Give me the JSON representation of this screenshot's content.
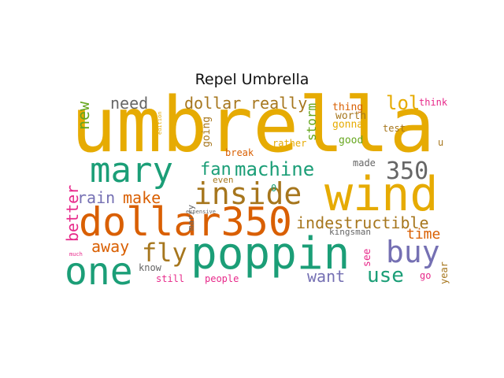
{
  "title": "Repel Umbrella",
  "words": {
    "umbrella": {
      "text": "umbrella",
      "color": "#e6ab02"
    },
    "wind": {
      "text": "wind",
      "color": "#e6ab02"
    },
    "poppin": {
      "text": "poppin",
      "color": "#1b9e77"
    },
    "dollar350": {
      "text": "dollar350",
      "color": "#d95f02"
    },
    "mary": {
      "text": "mary",
      "color": "#1b9e77"
    },
    "one": {
      "text": "one",
      "color": "#1b9e77"
    },
    "inside": {
      "text": "inside",
      "color": "#a6761d"
    },
    "buy": {
      "text": "buy",
      "color": "#7570b3"
    },
    "machine": {
      "text": "machine",
      "color": "#1b9e77"
    },
    "n350": {
      "text": "350",
      "color": "#666666"
    },
    "fly": {
      "text": "fly",
      "color": "#a6761d"
    },
    "use": {
      "text": "use",
      "color": "#1b9e77"
    },
    "indestructible": {
      "text": "indestructible",
      "color": "#a6761d"
    },
    "dollar": {
      "text": "dollar",
      "color": "#a6761d"
    },
    "really": {
      "text": "really",
      "color": "#a6761d"
    },
    "need": {
      "text": "need",
      "color": "#666666"
    },
    "lol": {
      "text": "lol",
      "color": "#e6ab02"
    },
    "fan": {
      "text": "fan",
      "color": "#1b9e77"
    },
    "rain": {
      "text": "rain",
      "color": "#7570b3"
    },
    "make": {
      "text": "make",
      "color": "#d95f02"
    },
    "away": {
      "text": "away",
      "color": "#d95f02"
    },
    "want": {
      "text": "want",
      "color": "#7570b3"
    },
    "time": {
      "text": "time",
      "color": "#d95f02"
    },
    "kingsman": {
      "text": "kingsman",
      "color": "#666666"
    },
    "know": {
      "text": "know",
      "color": "#666666"
    },
    "still": {
      "text": "still",
      "color": "#e7298a"
    },
    "people": {
      "text": "people",
      "color": "#e7298a"
    },
    "thing": {
      "text": "thing",
      "color": "#d95f02"
    },
    "gonna": {
      "text": "gonna",
      "color": "#e6ab02"
    },
    "worth": {
      "text": "worth",
      "color": "#a6761d"
    },
    "test": {
      "text": "test",
      "color": "#a6761d"
    },
    "good": {
      "text": "good",
      "color": "#66a61e"
    },
    "rather": {
      "text": "rather",
      "color": "#e6ab02"
    },
    "break": {
      "text": "break",
      "color": "#d95f02"
    },
    "made": {
      "text": "made",
      "color": "#666666"
    },
    "even": {
      "text": "even",
      "color": "#a6761d"
    },
    "think": {
      "text": "think",
      "color": "#e7298a"
    },
    "u": {
      "text": "u",
      "color": "#a6761d"
    },
    "zero": {
      "text": "0",
      "color": "#1b9e77"
    },
    "expensive": {
      "text": "expensive",
      "color": "#666666"
    },
    "much": {
      "text": "much",
      "color": "#e7298a"
    },
    "go": {
      "text": "go",
      "color": "#e7298a"
    },
    "new": {
      "text": "new",
      "color": "#66a61e"
    },
    "better": {
      "text": "better",
      "color": "#e7298a"
    },
    "going": {
      "text": "going",
      "color": "#a6761d"
    },
    "storm": {
      "text": "storm",
      "color": "#66a61e"
    },
    "see": {
      "text": "see",
      "color": "#e7298a"
    },
    "year": {
      "text": "year",
      "color": "#a6761d"
    },
    "marry": {
      "text": "marry",
      "color": "#666666"
    },
    "edition": {
      "text": "edition",
      "color": "#e6ab02"
    }
  }
}
